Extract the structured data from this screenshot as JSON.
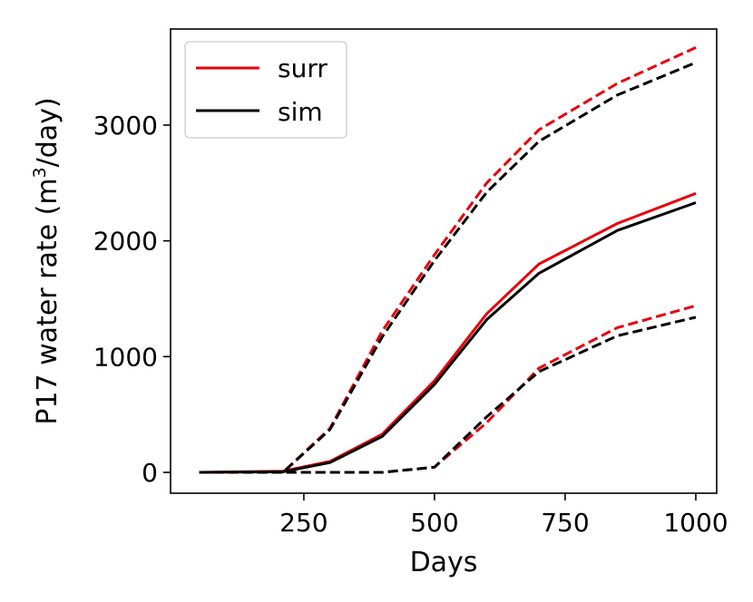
{
  "chart_data": {
    "type": "line",
    "xlabel": "Days",
    "ylabel_main": "P17 water rate (m",
    "ylabel_sup": "3",
    "ylabel_tail": "/day)",
    "xlim": [
      -5,
      1040
    ],
    "ylim": [
      -180,
      3830
    ],
    "xticks": [
      250,
      500,
      750,
      1000
    ],
    "xtick_labels": [
      "250",
      "500",
      "750",
      "1000"
    ],
    "yticks": [
      0,
      1000,
      2000,
      3000
    ],
    "ytick_labels": [
      "0",
      "1000",
      "2000",
      "3000"
    ],
    "legend": {
      "position": "top-left",
      "entries": [
        {
          "name": "surr",
          "color": "#e8000b"
        },
        {
          "name": "sim",
          "color": "#000000"
        }
      ]
    },
    "series": [
      {
        "name": "surr P90",
        "group": "surr",
        "color": "#e8000b",
        "style": "dashed",
        "x": [
          50,
          210,
          300,
          400,
          500,
          600,
          700,
          850,
          1000
        ],
        "y": [
          0,
          0,
          380,
          1220,
          1880,
          2500,
          2960,
          3360,
          3670
        ]
      },
      {
        "name": "surr P50",
        "group": "surr",
        "color": "#e8000b",
        "style": "solid",
        "x": [
          50,
          210,
          300,
          400,
          500,
          600,
          700,
          850,
          1000
        ],
        "y": [
          0,
          10,
          95,
          330,
          790,
          1370,
          1800,
          2150,
          2410
        ]
      },
      {
        "name": "surr P10",
        "group": "surr",
        "color": "#e8000b",
        "style": "dashed",
        "x": [
          50,
          210,
          300,
          400,
          500,
          600,
          700,
          850,
          1000
        ],
        "y": [
          0,
          0,
          0,
          0,
          45,
          430,
          900,
          1250,
          1440
        ]
      },
      {
        "name": "sim P90",
        "group": "sim",
        "color": "#000000",
        "style": "dashed",
        "x": [
          50,
          210,
          300,
          400,
          500,
          600,
          700,
          850,
          1000
        ],
        "y": [
          0,
          0,
          370,
          1170,
          1830,
          2420,
          2860,
          3260,
          3540
        ]
      },
      {
        "name": "sim P50",
        "group": "sim",
        "color": "#000000",
        "style": "solid",
        "x": [
          50,
          210,
          300,
          400,
          500,
          600,
          700,
          850,
          1000
        ],
        "y": [
          0,
          5,
          85,
          310,
          760,
          1320,
          1720,
          2090,
          2330
        ]
      },
      {
        "name": "sim P10",
        "group": "sim",
        "color": "#000000",
        "style": "dashed",
        "x": [
          50,
          210,
          300,
          400,
          500,
          600,
          700,
          850,
          1000
        ],
        "y": [
          0,
          0,
          0,
          0,
          45,
          480,
          870,
          1180,
          1340
        ]
      }
    ]
  }
}
